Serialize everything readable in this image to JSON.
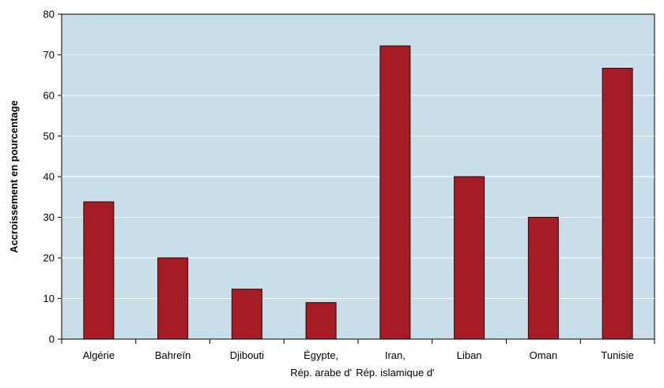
{
  "chart_data": {
    "type": "bar",
    "title": "",
    "xlabel": "",
    "ylabel": "Accroissement en pourcentage",
    "ylim": [
      0,
      80
    ],
    "yticks": [
      0,
      10,
      20,
      30,
      40,
      50,
      60,
      70,
      80
    ],
    "grid": true,
    "categories": [
      [
        "Algérie"
      ],
      [
        "Bahreïn"
      ],
      [
        "Djibouti"
      ],
      [
        "Égypte,",
        "Rép. arabe d'"
      ],
      [
        "Iran,",
        "Rép. islamique d'"
      ],
      [
        "Liban"
      ],
      [
        "Oman"
      ],
      [
        "Tunisie"
      ]
    ],
    "values": [
      33.8,
      20.0,
      12.3,
      9.0,
      72.2,
      40.0,
      30.0,
      66.7
    ],
    "colors": {
      "bar": "#a51c24",
      "bar_stroke": "#2a0a0a",
      "plot_background": "#c8dfe9",
      "gridline": "#ffffff",
      "axis": "#000000"
    }
  }
}
